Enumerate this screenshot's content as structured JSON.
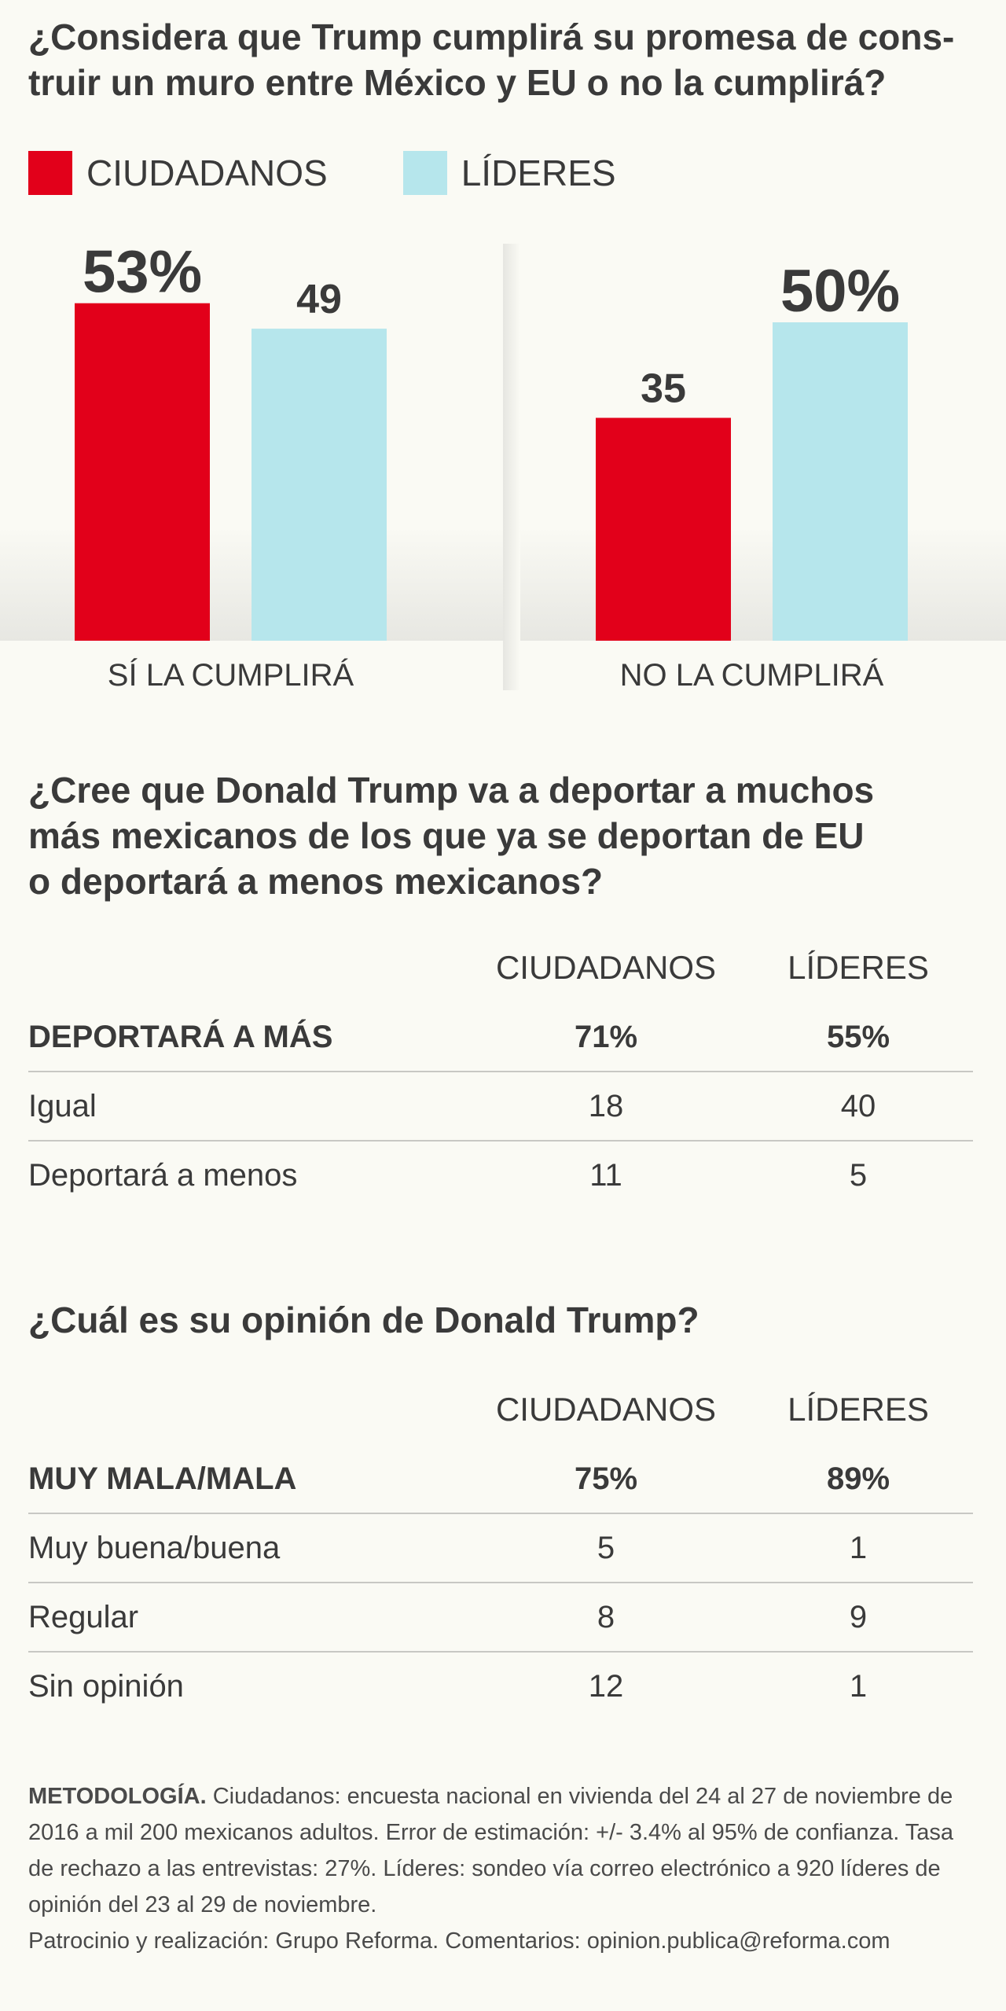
{
  "section1": {
    "title_line1": "¿Considera que Trump cumplirá su promesa de cons-",
    "title_line2": "truir un muro entre México y EU o no la cumplirá?"
  },
  "legend": [
    {
      "label": "CIUDADANOS",
      "color": "#e2001a"
    },
    {
      "label": "LÍDERES",
      "color": "#b6e6ec"
    }
  ],
  "chart_data": {
    "type": "bar",
    "title": "¿Considera que Trump cumplirá su promesa de construir un muro entre México y EU o no la cumplirá?",
    "categories": [
      "SÍ LA CUMPLIRÁ",
      "NO LA CUMPLIRÁ"
    ],
    "series": [
      {
        "name": "CIUDADANOS",
        "values": [
          53,
          35
        ],
        "color": "#e2001a"
      },
      {
        "name": "LÍDERES",
        "values": [
          49,
          50
        ],
        "color": "#b6e6ec"
      }
    ],
    "value_labels": [
      [
        "53%",
        "35"
      ],
      [
        "49",
        "50%"
      ]
    ],
    "xlabel": "",
    "ylabel": "",
    "ylim": [
      0,
      60
    ],
    "grid": false
  },
  "section2": {
    "title_line1": "¿Cree que Donald Trump va a deportar a muchos",
    "title_line2": "más mexicanos de los que ya se deportan de EU",
    "title_line3": "o deportará a menos mexicanos?",
    "headers": {
      "citizens": "CIUDADANOS",
      "leaders": "LÍDERES"
    },
    "rows": [
      {
        "label": "DEPORTARÁ A MÁS",
        "citizens": "71%",
        "leaders": "55%"
      },
      {
        "label": "Igual",
        "citizens": "18",
        "leaders": "40"
      },
      {
        "label": "Deportará a menos",
        "citizens": "11",
        "leaders": "5"
      }
    ]
  },
  "section3": {
    "title": "¿Cuál es su opinión de Donald Trump?",
    "headers": {
      "citizens": "CIUDADANOS",
      "leaders": "LÍDERES"
    },
    "rows": [
      {
        "label": "MUY MALA/MALA",
        "citizens": "75%",
        "leaders": "89%"
      },
      {
        "label": "Muy buena/buena",
        "citizens": "5",
        "leaders": "1"
      },
      {
        "label": "Regular",
        "citizens": "8",
        "leaders": "9"
      },
      {
        "label": "Sin opinión",
        "citizens": "12",
        "leaders": "1"
      }
    ]
  },
  "methodology": {
    "label": "METODOLOGÍA.",
    "text": "Ciudadanos: encuesta nacional en vivienda del 24 al 27 de noviembre de 2016 a mil 200 mexicanos adultos. Error de estimación: +/- 3.4% al 95% de confianza. Tasa de rechazo a las entrevistas: 27%. Líderes: sondeo vía correo electrónico a 920 líderes de opinión del 23 al 29 de noviembre.",
    "credits": "Patrocinio y realización: Grupo Reforma. Comentarios: opinion.publica@reforma.com"
  }
}
